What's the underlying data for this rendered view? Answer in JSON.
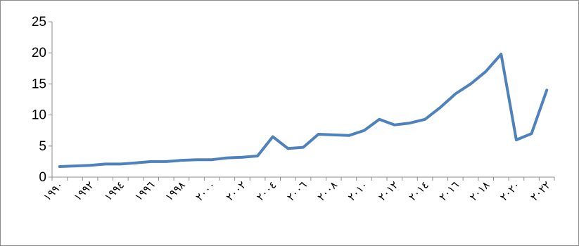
{
  "chart_data": {
    "type": "line",
    "title": "",
    "xlabel": "",
    "ylabel": "",
    "ylim": [
      0,
      25
    ],
    "yticks": [
      "0",
      "5",
      "10",
      "15",
      "20",
      "25"
    ],
    "grid": false,
    "legend": "none",
    "line_color": "#4f81bd",
    "x": [
      1990,
      1991,
      1992,
      1993,
      1994,
      1995,
      1996,
      1997,
      1998,
      1999,
      2000,
      2001,
      2002,
      2003,
      2004,
      2005,
      2006,
      2007,
      2008,
      2009,
      2010,
      2011,
      2012,
      2013,
      2014,
      2015,
      2016,
      2017,
      2018,
      2019,
      2020,
      2021,
      2022
    ],
    "x_tick_labels": [
      "١٩٩٠",
      "١٩٩٢",
      "١٩٩٤",
      "١٩٩٦",
      "١٩٩٨",
      "٢٠٠٠",
      "٢٠٠٢",
      "٢٠٠٤",
      "٢٠٠٦",
      "٢٠٠٨",
      "٢٠١٠",
      "٢٠١٢",
      "٢٠١٤",
      "٢٠١٦",
      "٢٠١٨",
      "٢٠٢٠",
      "٢٠٢٢"
    ],
    "series": [
      {
        "values": [
          1.7,
          1.8,
          1.9,
          2.1,
          2.1,
          2.3,
          2.5,
          2.5,
          2.7,
          2.8,
          2.8,
          3.1,
          3.2,
          3.4,
          6.5,
          4.6,
          4.8,
          6.9,
          6.8,
          6.7,
          7.5,
          9.3,
          8.4,
          8.7,
          9.3,
          11.2,
          13.4,
          15.0,
          17.0,
          19.8,
          6.0,
          7.0,
          14.0
        ]
      }
    ]
  }
}
